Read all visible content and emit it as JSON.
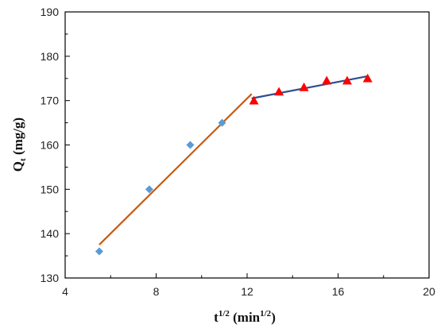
{
  "chart_data": {
    "type": "scatter",
    "title": "",
    "xlabel": {
      "base": "t",
      "sup": "1/2",
      "unit_open": " (min",
      "unit_sup": "1/2",
      "unit_close": ")"
    },
    "ylabel": {
      "base": "Q",
      "sub": "t",
      "unit": " (mg/g)"
    },
    "xlim": [
      4,
      20
    ],
    "ylim": [
      130,
      190
    ],
    "x_ticks": [
      4,
      8,
      12,
      16,
      20
    ],
    "y_ticks": [
      130,
      140,
      150,
      160,
      170,
      180,
      190
    ],
    "grid": false,
    "legend": "none",
    "series": [
      {
        "marker": "diamond",
        "color": "#5B9BD5",
        "x": [
          5.5,
          7.7,
          9.5,
          10.9
        ],
        "y": [
          136,
          150,
          160,
          165
        ]
      },
      {
        "marker": "triangle",
        "color": "#FF0000",
        "x": [
          12.3,
          13.4,
          14.5,
          15.5,
          16.4,
          17.3
        ],
        "y": [
          170,
          172,
          173,
          174.5,
          174.5,
          175
        ]
      }
    ],
    "fit_lines": [
      {
        "color": "#C55A11",
        "x": [
          5.5,
          12.2
        ],
        "y": [
          137.5,
          171.5
        ]
      },
      {
        "color": "#2F4F8F",
        "x": [
          12.2,
          17.3
        ],
        "y": [
          170.5,
          175.5
        ]
      }
    ]
  }
}
